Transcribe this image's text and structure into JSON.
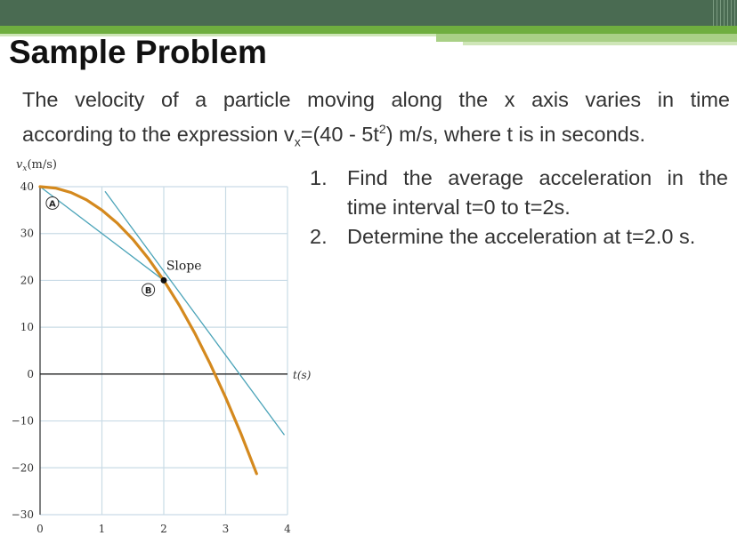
{
  "slide": {
    "title": "Sample Problem",
    "description_line1": "The velocity of a particle moving along the x axis varies in time",
    "description_line2_pre": "according to the expression v",
    "description_line2_sub": "x",
    "description_line2_mid": "=(40 - 5t",
    "description_line2_sup": "2",
    "description_line2_post": ") m/s, where t is in seconds.",
    "questions": [
      {
        "number": "1.",
        "line1": "Find the average acceleration in the",
        "line2": "time interval t=0 to t=2s."
      },
      {
        "number": "2.",
        "line1": "Determine the acceleration at t=2.0 s.",
        "line2": ""
      }
    ]
  },
  "colors": {
    "top_bar": "#4a6b52",
    "accent_green": "#6fae3f",
    "curve": "#d4891e",
    "tangent": "#4aa3b8",
    "grid": "#c9dbe6"
  },
  "chart_data": {
    "type": "line",
    "ylabel_var": "v",
    "ylabel_sub": "x",
    "ylabel_unit": "(m/s)",
    "xlabel": "t(s)",
    "xlim": [
      0,
      4
    ],
    "ylim": [
      -30,
      40
    ],
    "xticks": [
      "0",
      "1",
      "2",
      "3",
      "4"
    ],
    "yticks": [
      "40",
      "30",
      "20",
      "10",
      "0",
      "−10",
      "−20",
      "−30"
    ],
    "ytick_values": [
      40,
      30,
      20,
      10,
      0,
      -10,
      -20,
      -30
    ],
    "grid": true,
    "series": [
      {
        "x": [
          0,
          0.25,
          0.5,
          0.75,
          1.0,
          1.25,
          1.5,
          1.75,
          2.0,
          2.25,
          2.5,
          2.75,
          3.0,
          3.25,
          3.5
        ],
        "y": [
          40,
          39.69,
          38.75,
          37.19,
          35,
          32.19,
          28.75,
          24.69,
          20,
          14.69,
          8.75,
          2.19,
          -5,
          -12.81,
          -21.25
        ]
      }
    ],
    "chord": {
      "x": [
        0,
        2
      ],
      "y": [
        40,
        20
      ]
    },
    "tangent_line": {
      "x": [
        1.05,
        3.45
      ],
      "y": [
        39,
        -9
      ]
    },
    "tangent_extended": {
      "x": [
        1.05,
        3.95
      ],
      "y": [
        39,
        -13
      ]
    },
    "annotations": [
      {
        "label": "A",
        "x": 0.2,
        "y": 36.5
      },
      {
        "label": "B",
        "x": 1.75,
        "y": 18
      },
      {
        "label": "Slope",
        "x": 2.3,
        "y": 22.5
      }
    ],
    "point": {
      "x": 2,
      "y": 20
    }
  }
}
